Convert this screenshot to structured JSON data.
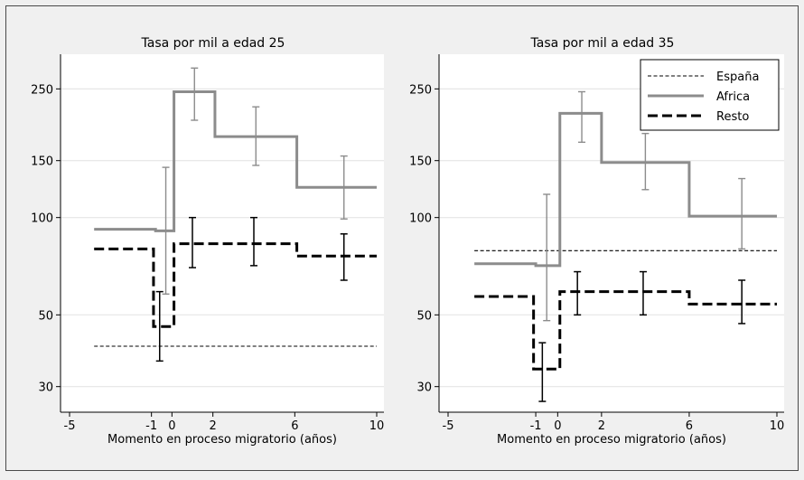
{
  "chart_data": [
    {
      "type": "line",
      "title": "Tasa por mil a edad 25",
      "xlabel": "Momento en proceso migratorio (años)",
      "ylabel": "",
      "x_ticks": [
        -5,
        -1,
        0,
        2,
        6,
        10
      ],
      "y_ticks": [
        30,
        50,
        100,
        150,
        250
      ],
      "y_scale": "log",
      "xlim": [
        -5,
        10
      ],
      "ylim": [
        25,
        320
      ],
      "grid": "horizontal",
      "series": [
        {
          "name": "España",
          "style": "dotted-thin",
          "color": "#000000",
          "steps": [
            {
              "x0": -3.8,
              "x1": 10,
              "y": 40
            }
          ],
          "errors": []
        },
        {
          "name": "Africa",
          "style": "solid-gray",
          "color": "#8c8c8c",
          "steps": [
            {
              "x0": -3.8,
              "x1": -0.8,
              "y": 92
            },
            {
              "x0": -0.8,
              "x1": 0.1,
              "y": 91
            },
            {
              "x0": 0.1,
              "x1": 2.1,
              "y": 245
            },
            {
              "x0": 2.1,
              "x1": 6.1,
              "y": 178
            },
            {
              "x0": 6.1,
              "x1": 10,
              "y": 124
            }
          ],
          "errors": [
            {
              "x": -0.3,
              "lo": 58,
              "hi": 143
            },
            {
              "x": 1.1,
              "lo": 200,
              "hi": 290
            },
            {
              "x": 4.1,
              "lo": 145,
              "hi": 220
            },
            {
              "x": 8.4,
              "lo": 99,
              "hi": 155
            }
          ]
        },
        {
          "name": "Resto",
          "style": "dashed-thick",
          "color": "#000000",
          "steps": [
            {
              "x0": -3.8,
              "x1": -0.9,
              "y": 80
            },
            {
              "x0": -0.9,
              "x1": 0.1,
              "y": 46
            },
            {
              "x0": 0.1,
              "x1": 6.1,
              "y": 83
            },
            {
              "x0": 6.1,
              "x1": 10,
              "y": 76
            }
          ],
          "errors": [
            {
              "x": -0.6,
              "lo": 36,
              "hi": 59
            },
            {
              "x": 1.0,
              "lo": 70,
              "hi": 100
            },
            {
              "x": 4.0,
              "lo": 71,
              "hi": 100
            },
            {
              "x": 8.4,
              "lo": 64,
              "hi": 89
            }
          ]
        }
      ]
    },
    {
      "type": "line",
      "title": "Tasa por mil a edad 35",
      "xlabel": "Momento en proceso migratorio (años)",
      "ylabel": "",
      "x_ticks": [
        -5,
        -1,
        0,
        2,
        6,
        10
      ],
      "y_ticks": [
        30,
        50,
        100,
        150,
        250
      ],
      "y_scale": "log",
      "xlim": [
        -5,
        10
      ],
      "ylim": [
        25,
        320
      ],
      "grid": "horizontal",
      "legend": {
        "position": "top-right",
        "entries": [
          "España",
          "Africa",
          "Resto"
        ]
      },
      "series": [
        {
          "name": "España",
          "style": "dotted-thin",
          "color": "#000000",
          "steps": [
            {
              "x0": -3.8,
              "x1": 10,
              "y": 79
            }
          ],
          "errors": []
        },
        {
          "name": "Africa",
          "style": "solid-gray",
          "color": "#8c8c8c",
          "steps": [
            {
              "x0": -3.8,
              "x1": -1.0,
              "y": 72
            },
            {
              "x0": -1.0,
              "x1": 0.1,
              "y": 71
            },
            {
              "x0": 0.1,
              "x1": 2.0,
              "y": 210
            },
            {
              "x0": 2.0,
              "x1": 6.0,
              "y": 148
            },
            {
              "x0": 6.0,
              "x1": 10,
              "y": 101
            }
          ],
          "errors": [
            {
              "x": -0.5,
              "lo": 48,
              "hi": 118
            },
            {
              "x": 1.1,
              "lo": 171,
              "hi": 245
            },
            {
              "x": 4.0,
              "lo": 122,
              "hi": 182
            },
            {
              "x": 8.4,
              "lo": 80,
              "hi": 132
            }
          ]
        },
        {
          "name": "Resto",
          "style": "dashed-thick",
          "color": "#000000",
          "steps": [
            {
              "x0": -3.8,
              "x1": -1.1,
              "y": 57
            },
            {
              "x0": -1.1,
              "x1": 0.1,
              "y": 34
            },
            {
              "x0": 0.1,
              "x1": 6.0,
              "y": 59
            },
            {
              "x0": 6.0,
              "x1": 10,
              "y": 54
            }
          ],
          "errors": [
            {
              "x": -0.7,
              "lo": 27,
              "hi": 41
            },
            {
              "x": 0.9,
              "lo": 50,
              "hi": 68
            },
            {
              "x": 3.9,
              "lo": 50,
              "hi": 68
            },
            {
              "x": 8.4,
              "lo": 47,
              "hi": 64
            }
          ]
        }
      ]
    }
  ]
}
